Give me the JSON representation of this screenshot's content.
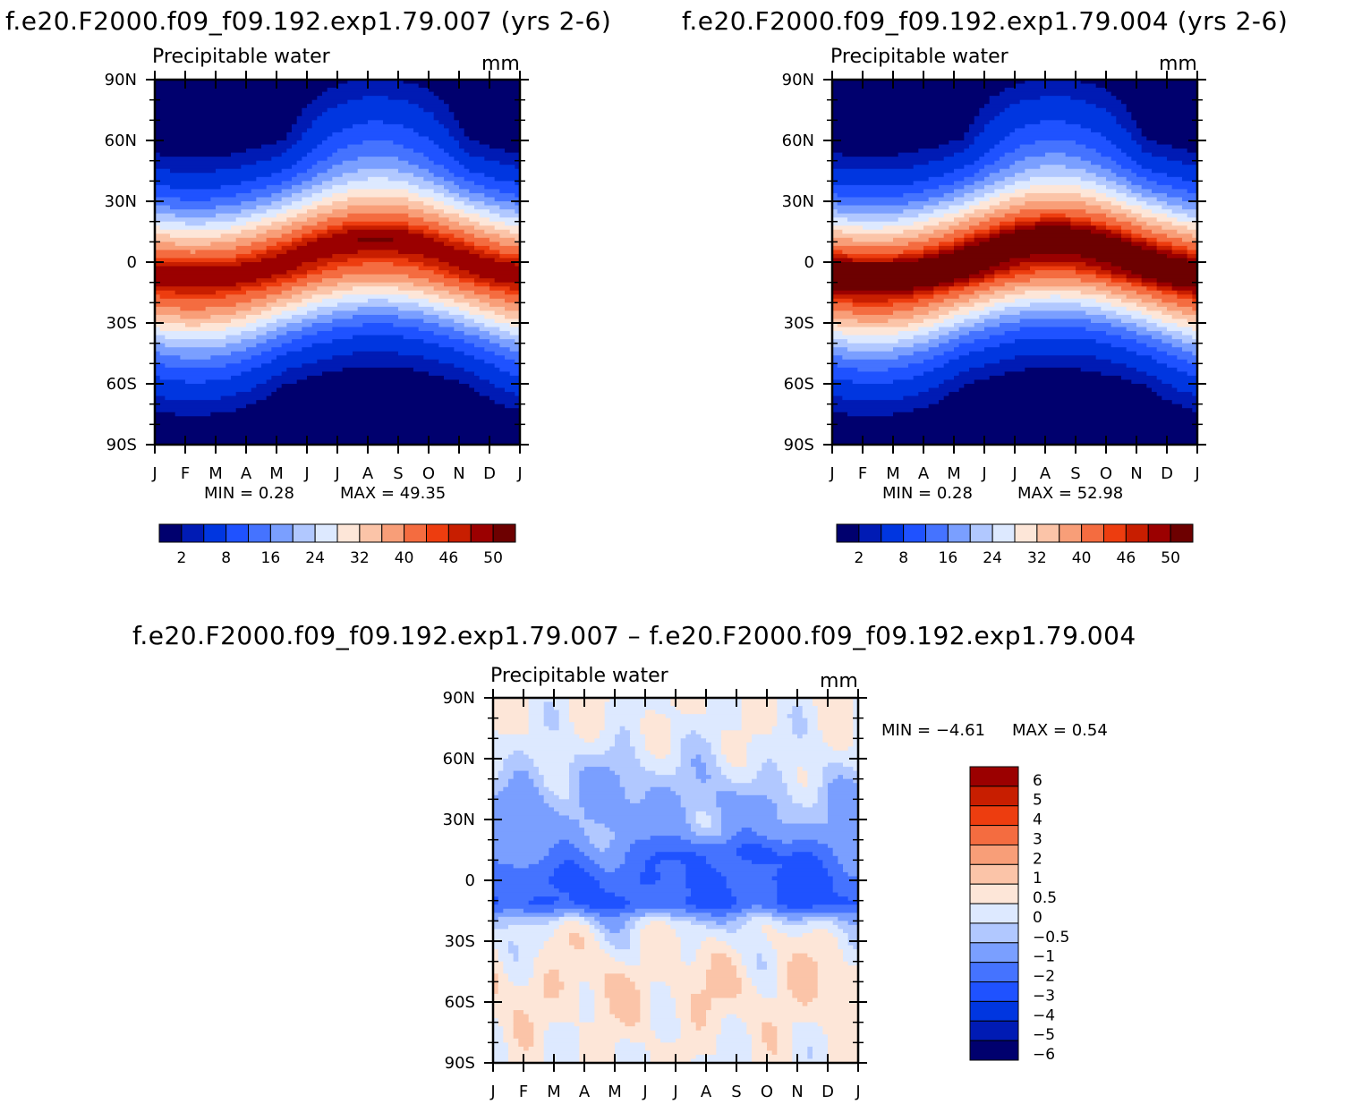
{
  "chart_data": [
    {
      "type": "heatmap",
      "id": "p1",
      "title": "f.e20.F2000.f09_f09.192.exp1.79.007 (yrs 2-6)",
      "subtitle": "Precipitable water",
      "units": "mm",
      "min_text": "MIN =    0.28",
      "max_text": "MAX =   49.35",
      "min": 0.28,
      "max": 49.35,
      "x_ticks": [
        "J",
        "F",
        "M",
        "A",
        "M",
        "J",
        "J",
        "A",
        "S",
        "O",
        "N",
        "D",
        "J"
      ],
      "y_ticks": [
        "90N",
        "60N",
        "30N",
        "0",
        "30S",
        "60S",
        "90S"
      ],
      "colorbar": {
        "levels": [
          2,
          4,
          8,
          12,
          16,
          20,
          24,
          28,
          32,
          36,
          40,
          44,
          46,
          48,
          50
        ],
        "labels": [
          "2",
          "8",
          "16",
          "24",
          "32",
          "40",
          "46",
          "50"
        ],
        "colors": [
          "#00006e",
          "#001bb4",
          "#0036e0",
          "#1f52ff",
          "#4573ff",
          "#7a9fff",
          "#b1c8ff",
          "#dde9ff",
          "#fde6d8",
          "#fbc4a8",
          "#f89e78",
          "#f46c40",
          "#ed3d0f",
          "#c81e00",
          "#9b0000",
          "#6d0000"
        ]
      }
    },
    {
      "type": "heatmap",
      "id": "p2",
      "title": "f.e20.F2000.f09_f09.192.exp1.79.004 (yrs 2-6)",
      "subtitle": "Precipitable water",
      "units": "mm",
      "min_text": "MIN =    0.28",
      "max_text": "MAX =   52.98",
      "min": 0.28,
      "max": 52.98,
      "x_ticks": [
        "J",
        "F",
        "M",
        "A",
        "M",
        "J",
        "J",
        "A",
        "S",
        "O",
        "N",
        "D",
        "J"
      ],
      "y_ticks": [
        "90N",
        "60N",
        "30N",
        "0",
        "30S",
        "60S",
        "90S"
      ],
      "colorbar": {
        "levels": [
          2,
          4,
          8,
          12,
          16,
          20,
          24,
          28,
          32,
          36,
          40,
          44,
          46,
          48,
          50
        ],
        "labels": [
          "2",
          "8",
          "16",
          "24",
          "32",
          "40",
          "46",
          "50"
        ],
        "colors": [
          "#00006e",
          "#001bb4",
          "#0036e0",
          "#1f52ff",
          "#4573ff",
          "#7a9fff",
          "#b1c8ff",
          "#dde9ff",
          "#fde6d8",
          "#fbc4a8",
          "#f89e78",
          "#f46c40",
          "#ed3d0f",
          "#c81e00",
          "#9b0000",
          "#6d0000"
        ]
      }
    },
    {
      "type": "heatmap",
      "id": "p3",
      "title": "f.e20.F2000.f09_f09.192.exp1.79.007 – f.e20.F2000.f09_f09.192.exp1.79.004",
      "subtitle": "Precipitable water",
      "units": "mm",
      "min_text": "MIN =   −4.61",
      "max_text": "MAX =    0.54",
      "min": -4.61,
      "max": 0.54,
      "x_ticks": [
        "J",
        "F",
        "M",
        "A",
        "M",
        "J",
        "J",
        "A",
        "S",
        "O",
        "N",
        "D",
        "J"
      ],
      "y_ticks": [
        "90N",
        "60N",
        "30N",
        "0",
        "30S",
        "60S",
        "90S"
      ],
      "colorbar": {
        "labels": [
          "6",
          "5",
          "4",
          "3",
          "2",
          "1",
          "0.5",
          "0",
          "−0.5",
          "−1",
          "−2",
          "−3",
          "−4",
          "−5",
          "−6"
        ],
        "colors": [
          "#9b0000",
          "#c81e00",
          "#ed3d0f",
          "#f46c40",
          "#f89e78",
          "#fbc4a8",
          "#fde6d8",
          "#dde9ff",
          "#b1c8ff",
          "#7a9fff",
          "#4573ff",
          "#1f52ff",
          "#0036e0",
          "#001bb4",
          "#00006e"
        ]
      }
    }
  ]
}
